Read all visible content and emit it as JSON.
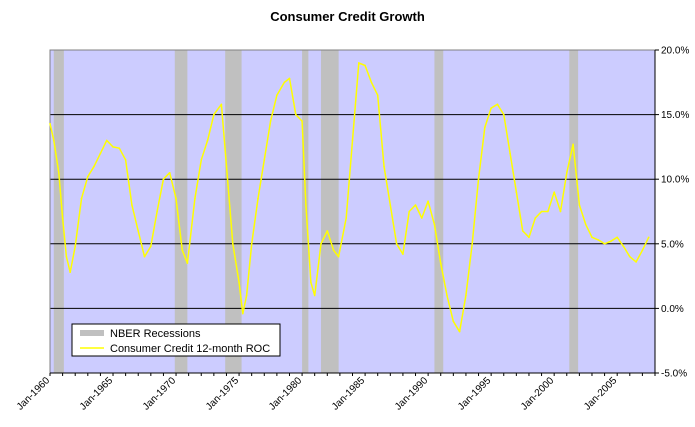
{
  "chart_data": {
    "type": "line",
    "title": "Consumer Credit Growth",
    "xlabel": "",
    "ylabel": "",
    "xlim": [
      1960.0,
      2008.0
    ],
    "ylim": [
      -5.0,
      20.0
    ],
    "y_ticks": [
      "20.0%",
      "15.0%",
      "10.0%",
      "5.0%",
      "0.0%",
      "-5.0%"
    ],
    "y_tick_values": [
      20,
      15,
      10,
      5,
      0,
      -5
    ],
    "x_ticks": [
      "Jan-1960",
      "Jan-1965",
      "Jan-1970",
      "Jan-1975",
      "Jan-1980",
      "Jan-1985",
      "Jan-1990",
      "Jan-1995",
      "Jan-2000",
      "Jan-2005"
    ],
    "x_tick_values": [
      1960,
      1965,
      1970,
      1975,
      1980,
      1985,
      1990,
      1995,
      2000,
      2005
    ],
    "grid": true,
    "legend_position": "bottom-left",
    "colors": {
      "plot_bg": "#ccccff",
      "recession": "#c0c0c0",
      "line": "#ffff00",
      "grid": "#000000"
    },
    "recessions": {
      "name": "NBER Recessions",
      "periods": [
        [
          1960.3,
          1961.1
        ],
        [
          1969.9,
          1970.9
        ],
        [
          1973.9,
          1975.2
        ],
        [
          1980.0,
          1980.5
        ],
        [
          1981.5,
          1982.9
        ],
        [
          1990.5,
          1991.2
        ],
        [
          2001.2,
          2001.9
        ]
      ]
    },
    "series": [
      {
        "name": "Consumer Credit 12-month ROC",
        "x": [
          1960.0,
          1960.3,
          1960.7,
          1961.0,
          1961.3,
          1961.6,
          1962.0,
          1962.5,
          1963.0,
          1963.5,
          1964.0,
          1964.5,
          1965.0,
          1965.5,
          1966.0,
          1966.5,
          1967.0,
          1967.5,
          1968.0,
          1968.5,
          1969.0,
          1969.5,
          1970.0,
          1970.5,
          1970.9,
          1971.5,
          1972.0,
          1972.5,
          1973.0,
          1973.6,
          1974.0,
          1974.5,
          1975.0,
          1975.3,
          1975.6,
          1976.0,
          1976.5,
          1977.0,
          1977.5,
          1978.0,
          1978.6,
          1979.0,
          1979.5,
          1980.0,
          1980.3,
          1980.7,
          1981.0,
          1981.5,
          1982.0,
          1982.5,
          1982.9,
          1983.5,
          1984.0,
          1984.5,
          1985.0,
          1985.5,
          1986.0,
          1986.5,
          1987.0,
          1987.5,
          1988.0,
          1988.5,
          1989.0,
          1989.5,
          1990.0,
          1990.5,
          1991.0,
          1991.5,
          1992.0,
          1992.5,
          1993.0,
          1993.5,
          1994.0,
          1994.5,
          1995.0,
          1995.5,
          1996.0,
          1996.5,
          1997.0,
          1997.5,
          1998.0,
          1998.5,
          1999.0,
          1999.5,
          2000.0,
          2000.5,
          2001.0,
          2001.5,
          2002.0,
          2002.5,
          2003.0,
          2003.5,
          2004.0,
          2004.5,
          2005.0,
          2005.5,
          2006.0,
          2006.5,
          2007.0,
          2007.5
        ],
        "values": [
          14.3,
          13.0,
          10.5,
          7.0,
          4.0,
          2.8,
          4.8,
          8.5,
          10.2,
          11.0,
          12.0,
          13.0,
          12.5,
          12.4,
          11.5,
          8.0,
          6.0,
          4.0,
          4.8,
          7.5,
          10.0,
          10.5,
          8.5,
          4.5,
          3.5,
          8.5,
          11.5,
          13.0,
          15.0,
          15.8,
          11.0,
          5.0,
          2.0,
          -0.4,
          1.0,
          5.0,
          8.5,
          11.5,
          14.5,
          16.5,
          17.5,
          17.8,
          15.0,
          14.5,
          8.0,
          2.0,
          1.0,
          5.0,
          6.0,
          4.5,
          4.0,
          7.0,
          13.0,
          19.0,
          18.8,
          17.5,
          16.5,
          11.0,
          8.0,
          5.0,
          4.2,
          7.5,
          8.0,
          7.0,
          8.3,
          6.5,
          3.5,
          1.0,
          -1.0,
          -1.8,
          1.0,
          5.0,
          10.0,
          14.0,
          15.5,
          15.8,
          15.0,
          12.0,
          9.0,
          6.0,
          5.5,
          7.0,
          7.5,
          7.5,
          9.0,
          7.5,
          10.5,
          12.7,
          8.0,
          6.5,
          5.5,
          5.3,
          5.0,
          5.2,
          5.5,
          4.8,
          4.0,
          3.6,
          4.5,
          5.5
        ]
      }
    ]
  }
}
